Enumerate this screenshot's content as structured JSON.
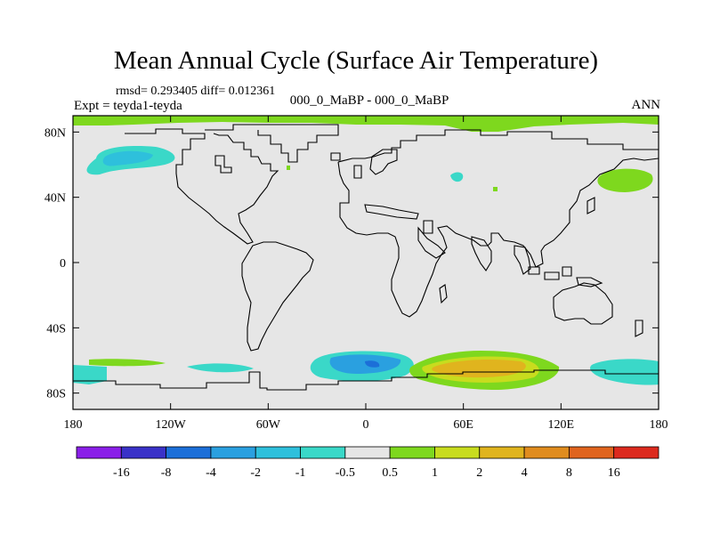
{
  "header": {
    "title": "Mean Annual Cycle (Surface Air Temperature)",
    "stats": "rmsd= 0.293405 diff= 0.012361",
    "experiment": "Expt = teyda1-teyda",
    "center_label": "000_0_MaBP - 000_0_MaBP",
    "season": "ANN"
  },
  "chart_data": {
    "type": "heatmap",
    "title": "Mean Annual Cycle (Surface Air Temperature)",
    "projection": "cylindrical equidistant",
    "xlim": [
      -180,
      180
    ],
    "ylim": [
      -90,
      90
    ],
    "x_ticks": [
      {
        "value": -180,
        "label": "180"
      },
      {
        "value": -120,
        "label": "120W"
      },
      {
        "value": -60,
        "label": "60W"
      },
      {
        "value": 0,
        "label": "0"
      },
      {
        "value": 60,
        "label": "60E"
      },
      {
        "value": 120,
        "label": "120E"
      },
      {
        "value": 180,
        "label": "180"
      }
    ],
    "y_ticks": [
      {
        "value": 80,
        "label": "80N"
      },
      {
        "value": 40,
        "label": "40N"
      },
      {
        "value": 0,
        "label": "0"
      },
      {
        "value": -40,
        "label": "40S"
      },
      {
        "value": -80,
        "label": "80S"
      }
    ],
    "background_value": "-0.5 to 0.5",
    "colorbar": {
      "labels": [
        "-16",
        "-8",
        "-4",
        "-2",
        "-1",
        "-0.5",
        "0.5",
        "1",
        "2",
        "4",
        "8",
        "16"
      ],
      "colors": [
        "#8a1fe8",
        "#3a32c8",
        "#1c6fd8",
        "#2aa0e0",
        "#2ec0dc",
        "#3ad8c8",
        "#e6e6e6",
        "#7ed81e",
        "#c8dc1e",
        "#e0b41e",
        "#e08c1e",
        "#e0641e",
        "#dc2a1e"
      ]
    },
    "anomaly_regions": [
      {
        "name": "north-polar-band",
        "lon": [
          -180,
          180
        ],
        "lat": [
          82,
          90
        ],
        "level": "1"
      },
      {
        "name": "alaska-bering",
        "lon": [
          -175,
          -135
        ],
        "lat": [
          52,
          70
        ],
        "level": "-1"
      },
      {
        "name": "north-pacific",
        "lon": [
          145,
          178
        ],
        "lat": [
          42,
          55
        ],
        "level": "1"
      },
      {
        "name": "antarctic-pacific-west",
        "lon": [
          -180,
          -150
        ],
        "lat": [
          -76,
          -64
        ],
        "level": "-1"
      },
      {
        "name": "antarctic-atlantic",
        "lon": [
          -30,
          20
        ],
        "lat": [
          -78,
          -58
        ],
        "level": "-2"
      },
      {
        "name": "antarctic-indian",
        "lon": [
          30,
          110
        ],
        "lat": [
          -80,
          -56
        ],
        "level": "2"
      },
      {
        "name": "antarctic-ross",
        "lon": [
          140,
          180
        ],
        "lat": [
          -78,
          -62
        ],
        "level": "-1"
      }
    ]
  }
}
